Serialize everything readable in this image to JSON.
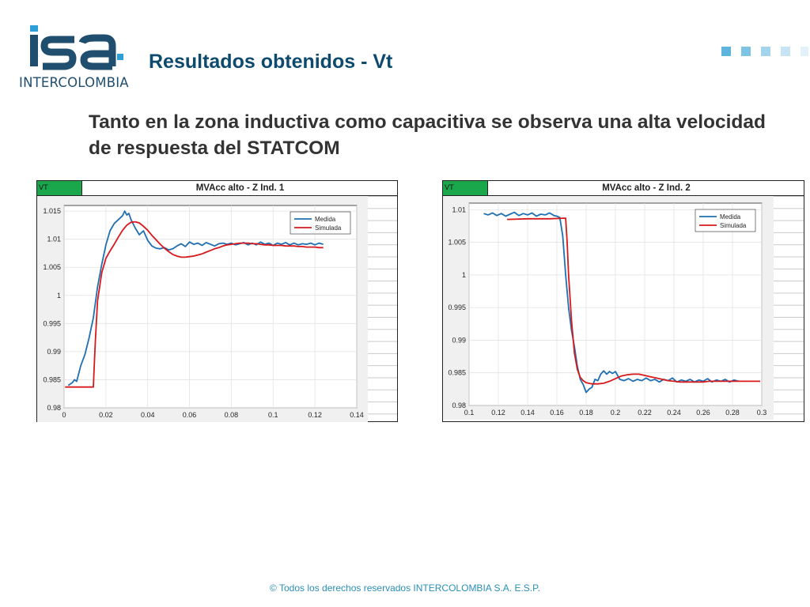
{
  "brand": {
    "logo_text": "isa",
    "logo_sub": "INTERCOLOMBIA",
    "primary_color": "#1f4e6f",
    "accent_color": "#2b9fd6"
  },
  "slide": {
    "title": "Resultados obtenidos - Vt",
    "headline": "Tanto en la zona inductiva como capacitiva se observa una alta velocidad de respuesta del STATCOM",
    "footer": "© Todos los derechos reservados INTERCOLOMBIA S.A. E.S.P."
  },
  "decorations": {
    "squares_colors": [
      "#5fb4dd",
      "#7cc3e4",
      "#a2d4ec",
      "#c6e4f3",
      "#e3f1f9"
    ]
  },
  "panels": [
    {
      "tag": "VT",
      "title": "MVAcc alto - Z Ind. 1"
    },
    {
      "tag": "VT",
      "title": "MVAcc alto - Z Ind. 2"
    }
  ],
  "chart_data": [
    {
      "type": "line",
      "title": "MVAcc alto - Z Ind. 1",
      "xlim": [
        0,
        0.14
      ],
      "ylim": [
        0.98,
        1.016
      ],
      "xticks": [
        "0",
        "0.02",
        "0.04",
        "0.06",
        "0.08",
        "0.1",
        "0.12",
        "0.14"
      ],
      "xtick_values": [
        0,
        0.02,
        0.04,
        0.06,
        0.08,
        0.1,
        0.12,
        0.14
      ],
      "yticks": [
        "0.98",
        "0.985",
        "0.99",
        "0.995",
        "1",
        "1.005",
        "1.01",
        "1.015"
      ],
      "ytick_values": [
        0.98,
        0.985,
        0.99,
        0.995,
        1,
        1.005,
        1.01,
        1.015
      ],
      "grid": true,
      "legend_position": "top-right",
      "series": [
        {
          "name": "Medida",
          "color": "#1f6fb2",
          "x": [
            0.002,
            0.004,
            0.005,
            0.006,
            0.008,
            0.01,
            0.012,
            0.014,
            0.016,
            0.018,
            0.02,
            0.022,
            0.024,
            0.026,
            0.028,
            0.029,
            0.03,
            0.031,
            0.032,
            0.034,
            0.036,
            0.038,
            0.04,
            0.042,
            0.044,
            0.046,
            0.048,
            0.05,
            0.052,
            0.054,
            0.056,
            0.058,
            0.06,
            0.062,
            0.064,
            0.066,
            0.068,
            0.07,
            0.072,
            0.074,
            0.076,
            0.078,
            0.08,
            0.082,
            0.084,
            0.086,
            0.088,
            0.09,
            0.092,
            0.094,
            0.096,
            0.098,
            0.1,
            0.102,
            0.104,
            0.106,
            0.108,
            0.11,
            0.112,
            0.114,
            0.116,
            0.118,
            0.12,
            0.122,
            0.124
          ],
          "y": [
            0.984,
            0.9845,
            0.985,
            0.9847,
            0.9875,
            0.9895,
            0.9925,
            0.996,
            1.0015,
            1.0055,
            1.009,
            1.0115,
            1.0128,
            1.0135,
            1.0142,
            1.015,
            1.0143,
            1.0146,
            1.0135,
            1.012,
            1.0108,
            1.0115,
            1.0098,
            1.0088,
            1.0084,
            1.0083,
            1.0085,
            1.0081,
            1.0083,
            1.0088,
            1.0092,
            1.0087,
            1.0095,
            1.0091,
            1.0093,
            1.0089,
            1.0094,
            1.0091,
            1.0088,
            1.0092,
            1.0093,
            1.0091,
            1.0093,
            1.009,
            1.0092,
            1.0094,
            1.009,
            1.0093,
            1.009,
            1.0095,
            1.0091,
            1.0093,
            1.0089,
            1.0093,
            1.0091,
            1.0094,
            1.009,
            1.0093,
            1.009,
            1.0092,
            1.0091,
            1.0093,
            1.009,
            1.0093,
            1.0091
          ]
        },
        {
          "name": "Simulada",
          "color": "#d7191c",
          "x": [
            0.0005,
            0.005,
            0.01,
            0.014,
            0.0145,
            0.015,
            0.016,
            0.018,
            0.02,
            0.022,
            0.024,
            0.026,
            0.028,
            0.03,
            0.032,
            0.034,
            0.036,
            0.038,
            0.04,
            0.042,
            0.044,
            0.046,
            0.048,
            0.05,
            0.052,
            0.054,
            0.056,
            0.058,
            0.06,
            0.062,
            0.064,
            0.066,
            0.068,
            0.07,
            0.072,
            0.074,
            0.076,
            0.078,
            0.08,
            0.082,
            0.084,
            0.086,
            0.088,
            0.09,
            0.092,
            0.094,
            0.096,
            0.098,
            0.1,
            0.102,
            0.104,
            0.106,
            0.108,
            0.11,
            0.112,
            0.114,
            0.116,
            0.118,
            0.12,
            0.122,
            0.124
          ],
          "y": [
            0.9837,
            0.9837,
            0.9837,
            0.9837,
            0.988,
            0.992,
            0.999,
            1.004,
            1.0066,
            1.0079,
            1.0091,
            1.0104,
            1.0116,
            1.0125,
            1.013,
            1.0131,
            1.0129,
            1.0123,
            1.0116,
            1.0107,
            1.0099,
            1.0091,
            1.0084,
            1.0078,
            1.0073,
            1.007,
            1.0068,
            1.0068,
            1.0069,
            1.007,
            1.0072,
            1.0074,
            1.0077,
            1.008,
            1.0083,
            1.0085,
            1.0088,
            1.009,
            1.0091,
            1.0092,
            1.0093,
            1.0093,
            1.0093,
            1.0092,
            1.0092,
            1.0091,
            1.009,
            1.009,
            1.0089,
            1.0089,
            1.0089,
            1.0088,
            1.0088,
            1.0088,
            1.0087,
            1.0087,
            1.0086,
            1.0086,
            1.0086,
            1.0085,
            1.0085
          ]
        }
      ]
    },
    {
      "type": "line",
      "title": "MVAcc alto - Z Ind. 2",
      "xlim": [
        0.1,
        0.3
      ],
      "ylim": [
        0.98,
        1.011
      ],
      "xticks": [
        "0.1",
        "0.12",
        "0.14",
        "0.16",
        "0.18",
        "0.2",
        "0.22",
        "0.24",
        "0.26",
        "0.28",
        "0.3"
      ],
      "xtick_values": [
        0.1,
        0.12,
        0.14,
        0.16,
        0.18,
        0.2,
        0.22,
        0.24,
        0.26,
        0.28,
        0.3
      ],
      "yticks": [
        "0.98",
        "0.985",
        "0.99",
        "0.995",
        "1",
        "1.005",
        "1.01"
      ],
      "ytick_values": [
        0.98,
        0.985,
        0.99,
        0.995,
        1,
        1.005,
        1.01
      ],
      "grid": true,
      "legend_position": "top-right",
      "series": [
        {
          "name": "Medida",
          "color": "#1f6fb2",
          "x": [
            0.11,
            0.113,
            0.116,
            0.119,
            0.122,
            0.125,
            0.128,
            0.131,
            0.134,
            0.137,
            0.14,
            0.143,
            0.146,
            0.149,
            0.152,
            0.155,
            0.158,
            0.16,
            0.162,
            0.164,
            0.166,
            0.168,
            0.17,
            0.172,
            0.174,
            0.176,
            0.178,
            0.18,
            0.182,
            0.184,
            0.186,
            0.188,
            0.19,
            0.192,
            0.194,
            0.196,
            0.198,
            0.2,
            0.203,
            0.206,
            0.209,
            0.212,
            0.215,
            0.218,
            0.221,
            0.224,
            0.227,
            0.23,
            0.233,
            0.236,
            0.239,
            0.242,
            0.245,
            0.248,
            0.251,
            0.254,
            0.257,
            0.26,
            0.263,
            0.266,
            0.269,
            0.272,
            0.275,
            0.278,
            0.281,
            0.284
          ],
          "y": [
            1.0094,
            1.0092,
            1.0095,
            1.0091,
            1.0094,
            1.009,
            1.0093,
            1.0096,
            1.0091,
            1.0094,
            1.0092,
            1.0095,
            1.009,
            1.0093,
            1.0092,
            1.0095,
            1.0091,
            1.009,
            1.0088,
            1.006,
            1.0,
            0.995,
            0.9915,
            0.989,
            0.986,
            0.984,
            0.9832,
            0.982,
            0.9825,
            0.9828,
            0.984,
            0.9838,
            0.9848,
            0.9853,
            0.9848,
            0.9852,
            0.9849,
            0.9852,
            0.984,
            0.9838,
            0.9841,
            0.9837,
            0.984,
            0.9838,
            0.9842,
            0.9838,
            0.984,
            0.9836,
            0.984,
            0.9838,
            0.9842,
            0.9836,
            0.9839,
            0.9837,
            0.984,
            0.9836,
            0.9839,
            0.9837,
            0.9841,
            0.9836,
            0.9839,
            0.9837,
            0.984,
            0.9836,
            0.9839,
            0.9837
          ]
        },
        {
          "name": "Simulada",
          "color": "#d7191c",
          "x": [
            0.126,
            0.14,
            0.155,
            0.166,
            0.167,
            0.168,
            0.17,
            0.172,
            0.174,
            0.176,
            0.178,
            0.18,
            0.184,
            0.188,
            0.192,
            0.196,
            0.2,
            0.204,
            0.208,
            0.212,
            0.216,
            0.22,
            0.224,
            0.228,
            0.232,
            0.236,
            0.24,
            0.244,
            0.248,
            0.252,
            0.256,
            0.26,
            0.264,
            0.268,
            0.272,
            0.276,
            0.28,
            0.284,
            0.288,
            0.292,
            0.296,
            0.299
          ],
          "y": [
            1.0085,
            1.0086,
            1.0086,
            1.0087,
            1.005,
            1.0,
            0.993,
            0.988,
            0.9855,
            0.9843,
            0.9838,
            0.9835,
            0.9833,
            0.9833,
            0.9834,
            0.9837,
            0.9841,
            0.9845,
            0.9847,
            0.9848,
            0.9848,
            0.9846,
            0.9844,
            0.9842,
            0.984,
            0.9838,
            0.9837,
            0.9836,
            0.9836,
            0.9836,
            0.9836,
            0.9836,
            0.9837,
            0.9837,
            0.9837,
            0.9837,
            0.9837,
            0.9837,
            0.9837,
            0.9837,
            0.9837,
            0.9837
          ]
        }
      ]
    }
  ]
}
